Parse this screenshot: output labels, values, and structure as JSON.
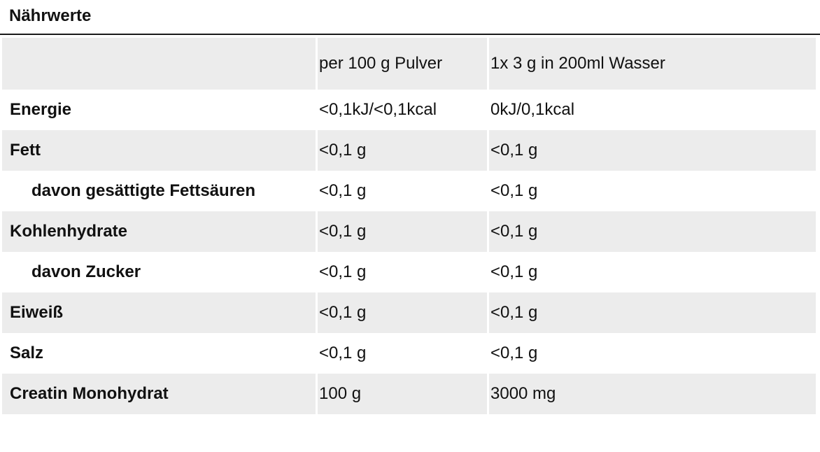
{
  "title": "Nährwerte",
  "table": {
    "columns": [
      "",
      "per 100 g Pulver",
      "1x 3 g in 200ml Wasser"
    ],
    "rows": [
      {
        "name": "Energie",
        "per100": "<0,1kJ/<0,1kcal",
        "perServing": "0kJ/0,1kcal"
      },
      {
        "name": "Fett",
        "per100": "<0,1 g",
        "perServing": "<0,1 g"
      },
      {
        "name": "davon gesättigte Fettsäuren",
        "per100": "<0,1 g",
        "perServing": "<0,1 g"
      },
      {
        "name": "Kohlenhydrate",
        "per100": "<0,1 g",
        "perServing": "<0,1 g"
      },
      {
        "name": "davon Zucker",
        "per100": "<0,1 g",
        "perServing": "<0,1 g"
      },
      {
        "name": "Eiweiß",
        "per100": "<0,1 g",
        "perServing": "<0,1 g"
      },
      {
        "name": "Salz",
        "per100": "<0,1 g",
        "perServing": "<0,1 g"
      },
      {
        "name": "Creatin Monohydrat",
        "per100": "100 g",
        "perServing": "3000 mg"
      }
    ]
  }
}
